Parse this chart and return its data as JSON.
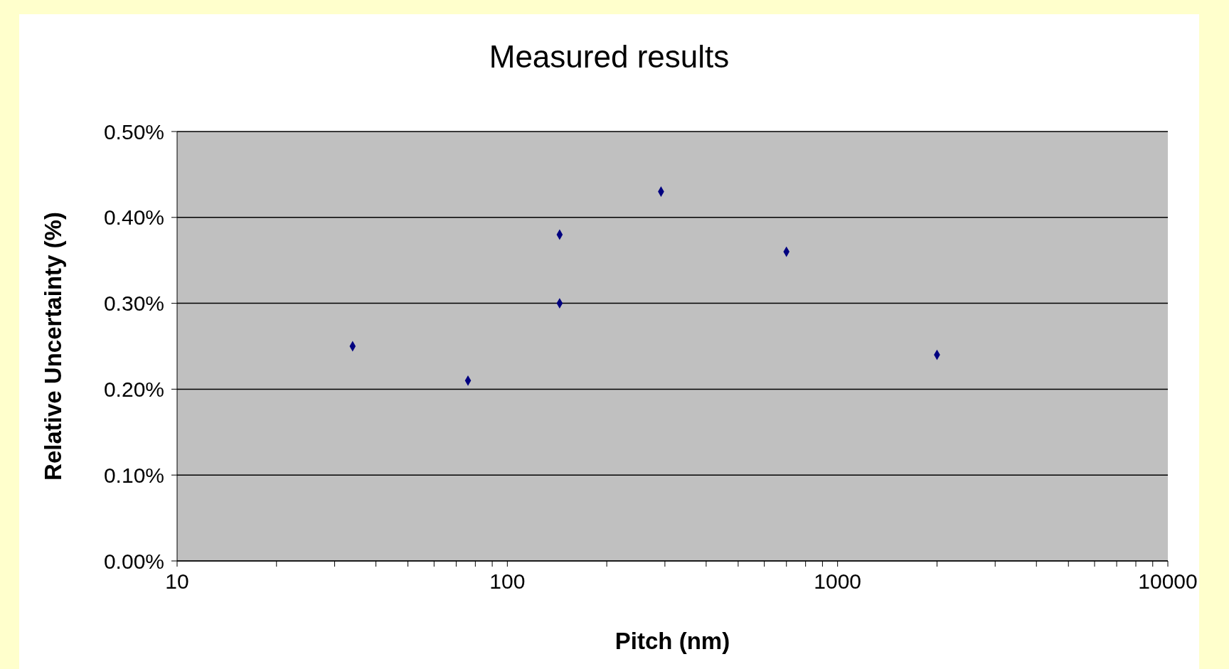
{
  "chart_data": {
    "type": "scatter",
    "title": "Measured results",
    "xlabel": "Pitch (nm)",
    "ylabel": "Relative Uncertainty (%)",
    "x": [
      34,
      76,
      144,
      144,
      292,
      700,
      2000
    ],
    "values": [
      0.25,
      0.21,
      0.38,
      0.3,
      0.43,
      0.36,
      0.24
    ],
    "color": "#000080",
    "marker": "diamond",
    "log": "x",
    "grid": "y",
    "xlim": [
      10,
      10000
    ],
    "xticks": [
      10,
      {
        "value": 20,
        "label": null
      },
      {
        "value": 30,
        "label": null
      },
      {
        "value": 40,
        "label": null
      },
      {
        "value": 50,
        "label": null
      },
      {
        "value": 60,
        "label": null
      },
      {
        "value": 70,
        "label": null
      },
      {
        "value": 80,
        "label": null
      },
      {
        "value": 90,
        "label": null
      },
      100,
      {
        "value": 200,
        "label": null
      },
      {
        "value": 300,
        "label": null
      },
      {
        "value": 400,
        "label": null
      },
      {
        "value": 500,
        "label": null
      },
      {
        "value": 600,
        "label": null
      },
      {
        "value": 700,
        "label": null
      },
      {
        "value": 800,
        "label": null
      },
      {
        "value": 900,
        "label": null
      },
      1000,
      {
        "value": 2000,
        "label": null
      },
      {
        "value": 3000,
        "label": null
      },
      {
        "value": 4000,
        "label": null
      },
      {
        "value": 5000,
        "label": null
      },
      {
        "value": 6000,
        "label": null
      },
      {
        "value": 7000,
        "label": null
      },
      {
        "value": 8000,
        "label": null
      },
      {
        "value": 9000,
        "label": null
      },
      10000
    ],
    "ylim": [
      0,
      0.5
    ],
    "yticks": [
      {
        "value": 0,
        "label": "0.00%"
      },
      {
        "value": 0.1,
        "label": "0.10%"
      },
      {
        "value": 0.2,
        "label": "0.20%"
      },
      {
        "value": 0.3,
        "label": "0.30%"
      },
      {
        "value": 0.4,
        "label": "0.40%"
      },
      {
        "value": 0.5,
        "label": "0.50%"
      }
    ]
  }
}
